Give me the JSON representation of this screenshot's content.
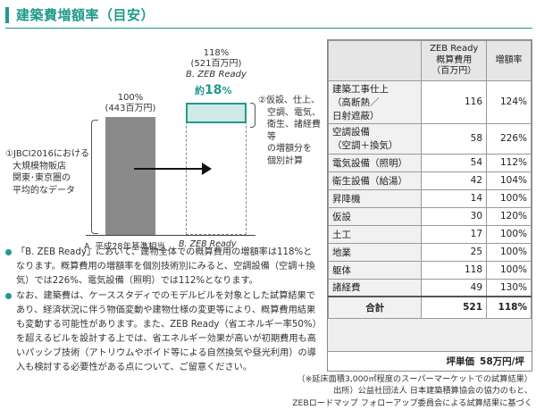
{
  "title": "建築費増額率（目安）",
  "chart": {
    "bar_a": {
      "pct": "100%",
      "amount": "(443百万円)",
      "axis_label": "A. 平成28年基準相当"
    },
    "bar_b": {
      "pct": "118%",
      "amount": "(521百万円)",
      "axis_label": "B. ZEB Ready",
      "increase_prefix": "約",
      "increase_value": "18",
      "increase_unit": "%"
    },
    "note_left": [
      "①JBCI2016における",
      "大規模物販店",
      "関東･東京圏の",
      "平均的なデータ"
    ],
    "note_right": [
      "②仮設、仕上、",
      "空調、電気、",
      "衛生、諸経費等",
      "の増額分を",
      "個別計算"
    ]
  },
  "chart_data": {
    "type": "bar",
    "categories": [
      "A. 平成28年基準相当",
      "B. ZEB Ready"
    ],
    "values": [
      443,
      521
    ],
    "percent": [
      100,
      118
    ],
    "unit": "百万円"
  },
  "bullets": [
    "「B. ZEB Ready」において、建物全体での概算費用の増額率は118%となります。概算費用の増額率を個別技術別にみると、空調設備（空調＋換気）では226%、電気設備（照明）では112%となります。",
    "なお、建築費は、ケーススタディでのモデルビルを対象とした試算結果であり、経済状況に伴う物価変動や建物仕様の変更等により、概算費用結果も変動する可能性があります。また、ZEB Ready（省エネルギー率50%）を超えるビルを設計する上では、省エネルギー効果が高いが初期費用も高いパッシブ技術（アトリウムやボイド等による自然換気や昼光利用）の導入も検討する必要性がある点について、ご留意ください。"
  ],
  "table": {
    "headers": [
      "",
      "ZEB Ready\n概算費用\n（百万円）",
      "増額率"
    ],
    "rows": [
      {
        "item": "建築工事仕上\n（高断熱／\n日射遮蔽）",
        "cost": "116",
        "rate": "124%"
      },
      {
        "item": "空調設備\n（空調＋換気）",
        "cost": "58",
        "rate": "226%"
      },
      {
        "item": "電気設備（照明）",
        "cost": "54",
        "rate": "112%"
      },
      {
        "item": "衛生設備（給湯）",
        "cost": "42",
        "rate": "104%"
      },
      {
        "item": "昇降機",
        "cost": "14",
        "rate": "100%"
      },
      {
        "item": "仮設",
        "cost": "30",
        "rate": "120%"
      },
      {
        "item": "土工",
        "cost": "17",
        "rate": "100%"
      },
      {
        "item": "地業",
        "cost": "25",
        "rate": "100%"
      },
      {
        "item": "躯体",
        "cost": "118",
        "rate": "100%"
      },
      {
        "item": "諸経費",
        "cost": "49",
        "rate": "130%"
      }
    ],
    "total": {
      "label": "合計",
      "cost": "521",
      "rate": "118%"
    },
    "tsubo": {
      "label": "坪単価",
      "value": "58万円/坪"
    }
  },
  "footnotes": [
    "（※延床面積3,000㎡程度のスーパーマーケットでの試算結果）",
    "出所）公益社団法人 日本建築積算協会の協力のもと、",
    "ZEBロードマップ フォローアップ委員会による試算結果に基づく"
  ]
}
